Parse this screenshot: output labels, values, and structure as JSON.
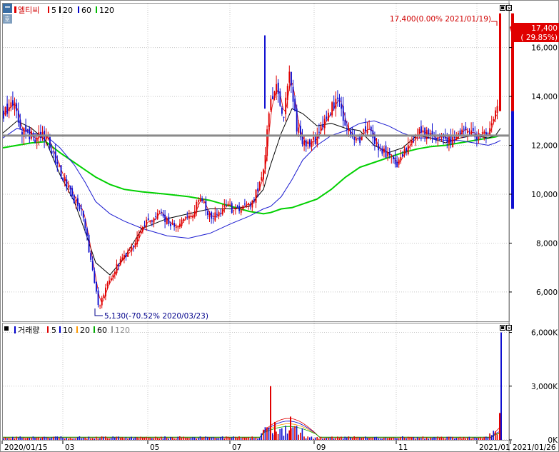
{
  "chart_data": [
    {
      "type": "candlestick",
      "title": "엘티씨",
      "legend": [
        {
          "label": "5",
          "color": "#e00000"
        },
        {
          "label": "20",
          "color": "#000000"
        },
        {
          "label": "60",
          "color": "#0000cc"
        },
        {
          "label": "120",
          "color": "#00bb00"
        }
      ],
      "ylim": [
        4800,
        17800
      ],
      "yticks": [
        6000,
        8000,
        10000,
        12000,
        14000,
        16000
      ],
      "ytick_labels": [
        "6,000",
        "8,000",
        "10,000",
        "12,000",
        "14,000",
        "16,000"
      ],
      "reference_line": 12400,
      "current_price": {
        "label": "17,400",
        "change": "( 29.85%)",
        "value": 17400
      },
      "annotation_high": {
        "text": "17,400(0.00% 2021/01/19)",
        "value": 17400
      },
      "annotation_low": {
        "text": "5,130(-70.52% 2020/03/23)",
        "value": 5130
      },
      "ma_keys": [
        {
          "x": 0,
          "ma20": 12500,
          "ma60": 12300,
          "ma120": 11900
        },
        {
          "x": 20,
          "ma20": 13000,
          "ma60": 12700,
          "ma120": 12000
        },
        {
          "x": 40,
          "ma20": 12700,
          "ma60": 12500,
          "ma120": 12100
        },
        {
          "x": 60,
          "ma20": 12200,
          "ma60": 12400,
          "ma120": 12150
        },
        {
          "x": 80,
          "ma20": 10800,
          "ma60": 11900,
          "ma120": 11700
        },
        {
          "x": 100,
          "ma20": 9700,
          "ma60": 11200,
          "ma120": 11300
        },
        {
          "x": 115,
          "ma20": 8500,
          "ma60": 10500,
          "ma120": 11000
        },
        {
          "x": 130,
          "ma20": 7200,
          "ma60": 9700,
          "ma120": 10700
        },
        {
          "x": 150,
          "ma20": 6700,
          "ma60": 9200,
          "ma120": 10400
        },
        {
          "x": 170,
          "ma20": 7400,
          "ma60": 8900,
          "ma120": 10200
        },
        {
          "x": 195,
          "ma20": 8600,
          "ma60": 8600,
          "ma120": 10100
        },
        {
          "x": 230,
          "ma20": 9000,
          "ma60": 8300,
          "ma120": 10000
        },
        {
          "x": 260,
          "ma20": 9200,
          "ma60": 8200,
          "ma120": 9900
        },
        {
          "x": 290,
          "ma20": 9400,
          "ma60": 8400,
          "ma120": 9750
        },
        {
          "x": 320,
          "ma20": 9400,
          "ma60": 8800,
          "ma120": 9500
        },
        {
          "x": 345,
          "ma20": 9500,
          "ma60": 9100,
          "ma120": 9300
        },
        {
          "x": 365,
          "ma20": 10200,
          "ma60": 9400,
          "ma120": 9200
        },
        {
          "x": 375,
          "ma20": 11200,
          "ma60": 9500,
          "ma120": 9250
        },
        {
          "x": 390,
          "ma20": 12500,
          "ma60": 9900,
          "ma120": 9400
        },
        {
          "x": 405,
          "ma20": 13500,
          "ma60": 10600,
          "ma120": 9450
        },
        {
          "x": 420,
          "ma20": 13300,
          "ma60": 11400,
          "ma120": 9600
        },
        {
          "x": 440,
          "ma20": 12800,
          "ma60": 12000,
          "ma120": 9800
        },
        {
          "x": 460,
          "ma20": 12900,
          "ma60": 12400,
          "ma120": 10200
        },
        {
          "x": 480,
          "ma20": 12700,
          "ma60": 12600,
          "ma120": 10700
        },
        {
          "x": 500,
          "ma20": 12600,
          "ma60": 12900,
          "ma120": 11100
        },
        {
          "x": 520,
          "ma20": 12000,
          "ma60": 13000,
          "ma120": 11300
        },
        {
          "x": 540,
          "ma20": 11700,
          "ma60": 12800,
          "ma120": 11500
        },
        {
          "x": 560,
          "ma20": 11900,
          "ma60": 12500,
          "ma120": 11700
        },
        {
          "x": 580,
          "ma20": 12400,
          "ma60": 12300,
          "ma120": 11850
        },
        {
          "x": 600,
          "ma20": 12300,
          "ma60": 12300,
          "ma120": 11950
        },
        {
          "x": 620,
          "ma20": 12100,
          "ma60": 12200,
          "ma120": 12000
        },
        {
          "x": 640,
          "ma20": 12300,
          "ma60": 12200,
          "ma120": 12100
        },
        {
          "x": 660,
          "ma20": 12400,
          "ma60": 12100,
          "ma120": 12200
        },
        {
          "x": 680,
          "ma20": 12300,
          "ma60": 12000,
          "ma120": 12300
        },
        {
          "x": 690,
          "ma20": 12400,
          "ma60": 12100,
          "ma120": 12350
        },
        {
          "x": 697,
          "ma20": 12700,
          "ma60": 12200,
          "ma120": 12400
        }
      ],
      "price_keys": [
        {
          "x": 0,
          "v": 13300
        },
        {
          "x": 15,
          "v": 13700
        },
        {
          "x": 25,
          "v": 12600
        },
        {
          "x": 45,
          "v": 12300
        },
        {
          "x": 60,
          "v": 12400
        },
        {
          "x": 70,
          "v": 11600
        },
        {
          "x": 85,
          "v": 10600
        },
        {
          "x": 100,
          "v": 9700
        },
        {
          "x": 110,
          "v": 9400
        },
        {
          "x": 120,
          "v": 7600
        },
        {
          "x": 128,
          "v": 6400
        },
        {
          "x": 133,
          "v": 5300
        },
        {
          "x": 145,
          "v": 6300
        },
        {
          "x": 160,
          "v": 7100
        },
        {
          "x": 180,
          "v": 7900
        },
        {
          "x": 200,
          "v": 8800
        },
        {
          "x": 220,
          "v": 9200
        },
        {
          "x": 240,
          "v": 8600
        },
        {
          "x": 265,
          "v": 9200
        },
        {
          "x": 275,
          "v": 9900
        },
        {
          "x": 290,
          "v": 9000
        },
        {
          "x": 310,
          "v": 9500
        },
        {
          "x": 330,
          "v": 9300
        },
        {
          "x": 350,
          "v": 9700
        },
        {
          "x": 365,
          "v": 11100
        },
        {
          "x": 372,
          "v": 13500
        },
        {
          "x": 382,
          "v": 14300
        },
        {
          "x": 392,
          "v": 13200
        },
        {
          "x": 400,
          "v": 15100
        },
        {
          "x": 410,
          "v": 12800
        },
        {
          "x": 420,
          "v": 12000
        },
        {
          "x": 440,
          "v": 12300
        },
        {
          "x": 455,
          "v": 13300
        },
        {
          "x": 467,
          "v": 13900
        },
        {
          "x": 480,
          "v": 12700
        },
        {
          "x": 495,
          "v": 12000
        },
        {
          "x": 510,
          "v": 12800
        },
        {
          "x": 520,
          "v": 12100
        },
        {
          "x": 535,
          "v": 11600
        },
        {
          "x": 550,
          "v": 11200
        },
        {
          "x": 565,
          "v": 11900
        },
        {
          "x": 585,
          "v": 12600
        },
        {
          "x": 605,
          "v": 12300
        },
        {
          "x": 625,
          "v": 12200
        },
        {
          "x": 645,
          "v": 12500
        },
        {
          "x": 665,
          "v": 12300
        },
        {
          "x": 680,
          "v": 12600
        },
        {
          "x": 690,
          "v": 13500
        },
        {
          "x": 697,
          "v": 13600
        }
      ],
      "last_candle": {
        "open": 13400,
        "close": 17400,
        "high": 17400,
        "low": 13400
      }
    },
    {
      "type": "bar",
      "title": "거래량",
      "legend": [
        {
          "label": "5",
          "color": "#e00000"
        },
        {
          "label": "10",
          "color": "#0000cc"
        },
        {
          "label": "20",
          "color": "#ff9900"
        },
        {
          "label": "60",
          "color": "#00aa00"
        },
        {
          "label": "120",
          "color": "#999999"
        }
      ],
      "ylim": [
        0,
        6500
      ],
      "yticks": [
        0,
        3000,
        6000
      ],
      "ytick_labels": [
        "0K",
        "3,000K",
        "6,000K"
      ],
      "spikes": [
        {
          "x": 374,
          "v": 3000
        },
        {
          "x": 380,
          "v": 1000
        },
        {
          "x": 402,
          "v": 1300
        },
        {
          "x": 697,
          "v": 6000
        },
        {
          "x": 695,
          "v": 1500
        }
      ]
    }
  ],
  "x_axis": {
    "labels": [
      {
        "text": "2020/01/15",
        "x": 3
      },
      {
        "text": "03",
        "x": 88
      },
      {
        "text": "05",
        "x": 207
      },
      {
        "text": "07",
        "x": 322
      },
      {
        "text": "09",
        "x": 440
      },
      {
        "text": "11",
        "x": 555
      },
      {
        "text": "2021/01",
        "x": 668
      },
      {
        "text": "2021/01/26",
        "x": 715
      }
    ]
  }
}
